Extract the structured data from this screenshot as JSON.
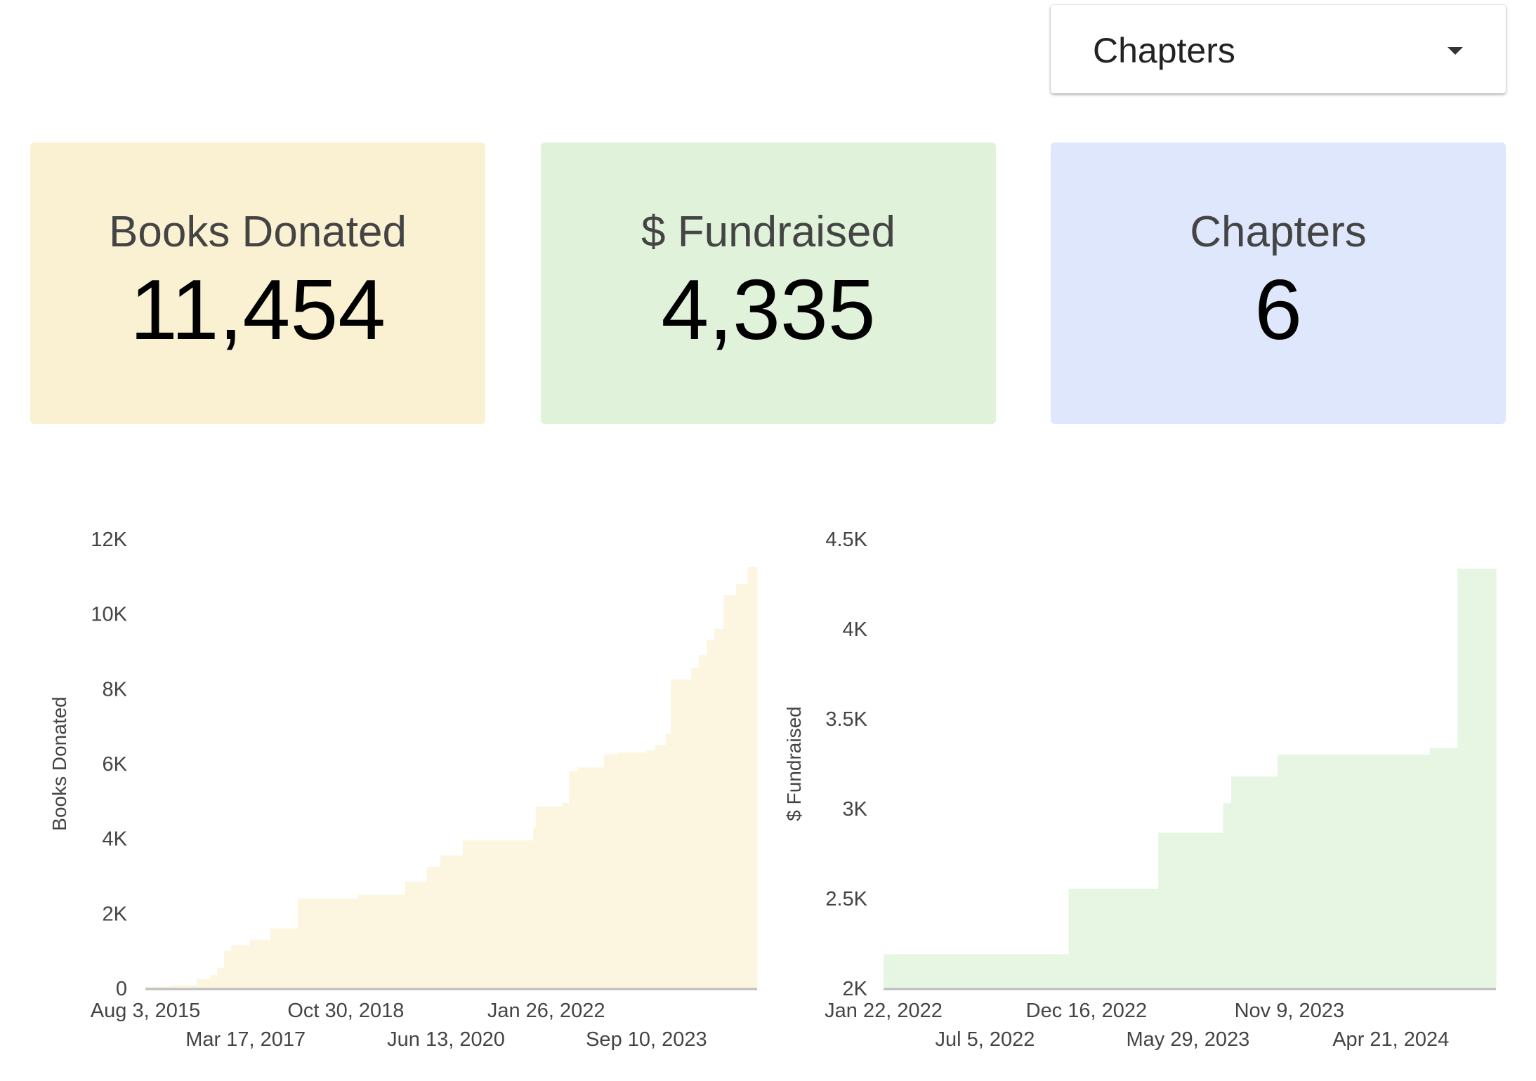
{
  "filter": {
    "selected": "Chapters",
    "icon": "caret-down-icon"
  },
  "cards": [
    {
      "title": "Books Donated",
      "value": "11,454",
      "color": "#FAF1D2"
    },
    {
      "title": "$ Fundraised",
      "value": "4,335",
      "color": "#E0F3DA"
    },
    {
      "title": "Chapters",
      "value": "6",
      "color": "#DEE7FB"
    }
  ],
  "chart_data": [
    {
      "type": "area",
      "step": true,
      "ylabel": "Books Donated",
      "xlabel": "",
      "fill": "#FCF5E0",
      "ylim": [
        0,
        12000
      ],
      "yticks": [
        {
          "v": 0,
          "label": "0"
        },
        {
          "v": 2000,
          "label": "2K"
        },
        {
          "v": 4000,
          "label": "4K"
        },
        {
          "v": 6000,
          "label": "6K"
        },
        {
          "v": 8000,
          "label": "8K"
        },
        {
          "v": 10000,
          "label": "10K"
        },
        {
          "v": 12000,
          "label": "12K"
        }
      ],
      "xlim": [
        "2015-08-03",
        "2025-06-25"
      ],
      "xticks": [
        {
          "date": "2015-08-03",
          "label": "Aug 3, 2015"
        },
        {
          "date": "2017-03-17",
          "label": "Mar 17, 2017"
        },
        {
          "date": "2018-10-30",
          "label": "Oct 30, 2018"
        },
        {
          "date": "2020-06-13",
          "label": "Jun 13, 2020"
        },
        {
          "date": "2022-01-26",
          "label": "Jan 26, 2022"
        },
        {
          "date": "2023-09-10",
          "label": "Sep 10, 2023"
        }
      ],
      "points": [
        [
          "2015-08-03",
          50
        ],
        [
          "2016-01-01",
          80
        ],
        [
          "2016-06-01",
          250
        ],
        [
          "2016-08-20",
          350
        ],
        [
          "2016-09-30",
          550
        ],
        [
          "2016-11-10",
          1000
        ],
        [
          "2016-12-20",
          1150
        ],
        [
          "2017-04-10",
          1300
        ],
        [
          "2017-08-10",
          1600
        ],
        [
          "2018-01-20",
          2400
        ],
        [
          "2019-01-10",
          2500
        ],
        [
          "2019-10-15",
          2850
        ],
        [
          "2020-02-20",
          3250
        ],
        [
          "2020-05-10",
          3550
        ],
        [
          "2020-09-20",
          3950
        ],
        [
          "2021-11-10",
          4300
        ],
        [
          "2021-11-25",
          4850
        ],
        [
          "2022-05-01",
          4950
        ],
        [
          "2022-06-10",
          5800
        ],
        [
          "2022-08-01",
          5900
        ],
        [
          "2023-01-01",
          6250
        ],
        [
          "2023-03-20",
          6300
        ],
        [
          "2023-09-10",
          6350
        ],
        [
          "2023-11-01",
          6500
        ],
        [
          "2024-01-01",
          6800
        ],
        [
          "2024-02-01",
          8250
        ],
        [
          "2024-06-01",
          8550
        ],
        [
          "2024-07-15",
          8900
        ],
        [
          "2024-09-01",
          9300
        ],
        [
          "2024-10-15",
          9600
        ],
        [
          "2024-12-10",
          10500
        ],
        [
          "2025-02-20",
          10800
        ],
        [
          "2025-05-01",
          11250
        ]
      ]
    },
    {
      "type": "area",
      "step": true,
      "ylabel": "$ Fundraised",
      "xlabel": "",
      "fill": "#E6F6E3",
      "ylim": [
        2000,
        4500
      ],
      "yticks": [
        {
          "v": 2000,
          "label": "2K"
        },
        {
          "v": 2500,
          "label": "2.5K"
        },
        {
          "v": 3000,
          "label": "3K"
        },
        {
          "v": 3500,
          "label": "3.5K"
        },
        {
          "v": 4000,
          "label": "4K"
        },
        {
          "v": 4500,
          "label": "4.5K"
        }
      ],
      "xlim": [
        "2022-01-22",
        "2024-10-08"
      ],
      "xticks": [
        {
          "date": "2022-01-22",
          "label": "Jan 22, 2022"
        },
        {
          "date": "2022-07-05",
          "label": "Jul 5, 2022"
        },
        {
          "date": "2022-12-16",
          "label": "Dec 16, 2022"
        },
        {
          "date": "2023-05-29",
          "label": "May 29, 2023"
        },
        {
          "date": "2023-11-09",
          "label": "Nov 9, 2023"
        },
        {
          "date": "2024-04-21",
          "label": "Apr 21, 2024"
        }
      ],
      "points": [
        [
          "2022-01-22",
          2190
        ],
        [
          "2022-11-17",
          2555
        ],
        [
          "2023-04-11",
          2866
        ],
        [
          "2023-07-25",
          3031
        ],
        [
          "2023-08-07",
          3179
        ],
        [
          "2023-10-21",
          3300
        ],
        [
          "2024-06-23",
          3338
        ],
        [
          "2024-08-07",
          4335
        ]
      ]
    }
  ]
}
